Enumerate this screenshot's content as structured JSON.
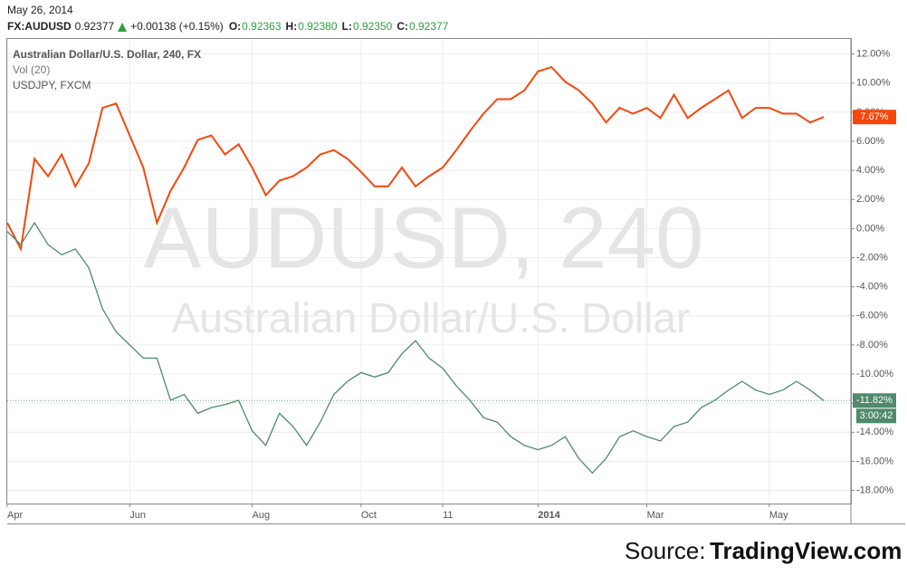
{
  "header": {
    "date": "May 26, 2014",
    "symbol": "FX:AUDUSD",
    "price": "0.92377",
    "change": "+0.00138 (+0.15%)",
    "ohlc": [
      {
        "label": "O:",
        "value": "0.92363"
      },
      {
        "label": "H:",
        "value": "0.92380"
      },
      {
        "label": "L:",
        "value": "0.92350"
      },
      {
        "label": "C:",
        "value": "0.92377"
      }
    ]
  },
  "legend": [
    "Australian Dollar/U.S. Dollar, 240, FX",
    "Vol (20)",
    "USDJPY, FXCM"
  ],
  "watermark": [
    "AUDUSD, 240",
    "Australian Dollar/U.S. Dollar"
  ],
  "source": {
    "prefix": "Source:",
    "name": "TradingView.com"
  },
  "chart_data": {
    "type": "line",
    "categories": [
      "Apr",
      null,
      null,
      null,
      null,
      null,
      null,
      null,
      null,
      "Jun",
      null,
      null,
      null,
      null,
      null,
      null,
      null,
      null,
      "Aug",
      null,
      null,
      null,
      null,
      null,
      null,
      null,
      "Oct",
      null,
      null,
      null,
      null,
      null,
      "11",
      null,
      null,
      null,
      null,
      null,
      null,
      "2014",
      null,
      null,
      null,
      null,
      null,
      null,
      null,
      "Mar",
      null,
      null,
      null,
      null,
      null,
      null,
      null,
      null,
      "May",
      null,
      null,
      null,
      null
    ],
    "ylim": [
      -18.9,
      13.1
    ],
    "yticks": [
      {
        "value": 12,
        "label": "12.00%"
      },
      {
        "value": 10,
        "label": "10.00%"
      },
      {
        "value": 8,
        "label": "8.00%"
      },
      {
        "value": 6,
        "label": "6.00%"
      },
      {
        "value": 4,
        "label": "4.00%"
      },
      {
        "value": 2,
        "label": "2.00%"
      },
      {
        "value": 0,
        "label": "0.00%"
      },
      {
        "value": -2,
        "label": "-2.00%"
      },
      {
        "value": -4,
        "label": "-4.00%"
      },
      {
        "value": -6,
        "label": "-6.00%"
      },
      {
        "value": -8,
        "label": "-8.00%"
      },
      {
        "value": -10,
        "label": "-10.00%"
      },
      {
        "value": -12,
        "label": "-12.00%"
      },
      {
        "value": -14,
        "label": "-14.00%"
      },
      {
        "value": -16,
        "label": "-16.00%"
      },
      {
        "value": -18,
        "label": "-18.00%"
      }
    ],
    "grid": true,
    "series": [
      {
        "name": "USDJPY, FXCM",
        "color": "#f5470c",
        "values": [
          0.4,
          -1.4,
          4.8,
          3.6,
          5.1,
          2.9,
          4.5,
          8.3,
          8.6,
          6.4,
          4.2,
          0.4,
          2.6,
          4.2,
          6.1,
          6.4,
          5.1,
          5.8,
          4.2,
          2.3,
          3.3,
          3.6,
          4.2,
          5.1,
          5.4,
          4.8,
          3.9,
          2.9,
          2.9,
          4.2,
          2.9,
          3.6,
          4.2,
          5.4,
          6.7,
          7.9,
          8.9,
          8.9,
          9.5,
          10.8,
          11.1,
          10.1,
          9.5,
          8.6,
          7.3,
          8.3,
          7.9,
          8.3,
          7.6,
          9.2,
          7.6,
          8.3,
          8.9,
          9.5,
          7.6,
          8.3,
          8.3,
          7.9,
          7.9,
          7.3,
          7.67
        ],
        "last": {
          "value": 7.67,
          "label": "7.67%"
        }
      },
      {
        "name": "Australian Dollar/U.S. Dollar, 240, FX",
        "color": "#4f8a6c",
        "values": [
          -0.2,
          -1.1,
          0.4,
          -1.1,
          -1.8,
          -1.4,
          -2.7,
          -5.5,
          -7.1,
          -8.0,
          -8.9,
          -8.9,
          -11.8,
          -11.4,
          -12.7,
          -12.3,
          -12.1,
          -11.8,
          -13.9,
          -14.9,
          -12.7,
          -13.6,
          -14.9,
          -13.3,
          -11.4,
          -10.5,
          -9.9,
          -10.2,
          -9.9,
          -8.6,
          -7.7,
          -8.9,
          -9.6,
          -10.8,
          -11.8,
          -13.0,
          -13.3,
          -14.3,
          -14.9,
          -15.2,
          -14.9,
          -14.3,
          -15.8,
          -16.8,
          -15.8,
          -14.3,
          -13.9,
          -14.3,
          -14.6,
          -13.6,
          -13.3,
          -12.3,
          -11.8,
          -11.1,
          -10.5,
          -11.1,
          -11.4,
          -11.1,
          -10.5,
          -11.1,
          -11.82
        ],
        "last": {
          "value": -11.82,
          "label": "-11.82%"
        },
        "countdown": "3:00:42"
      }
    ]
  }
}
